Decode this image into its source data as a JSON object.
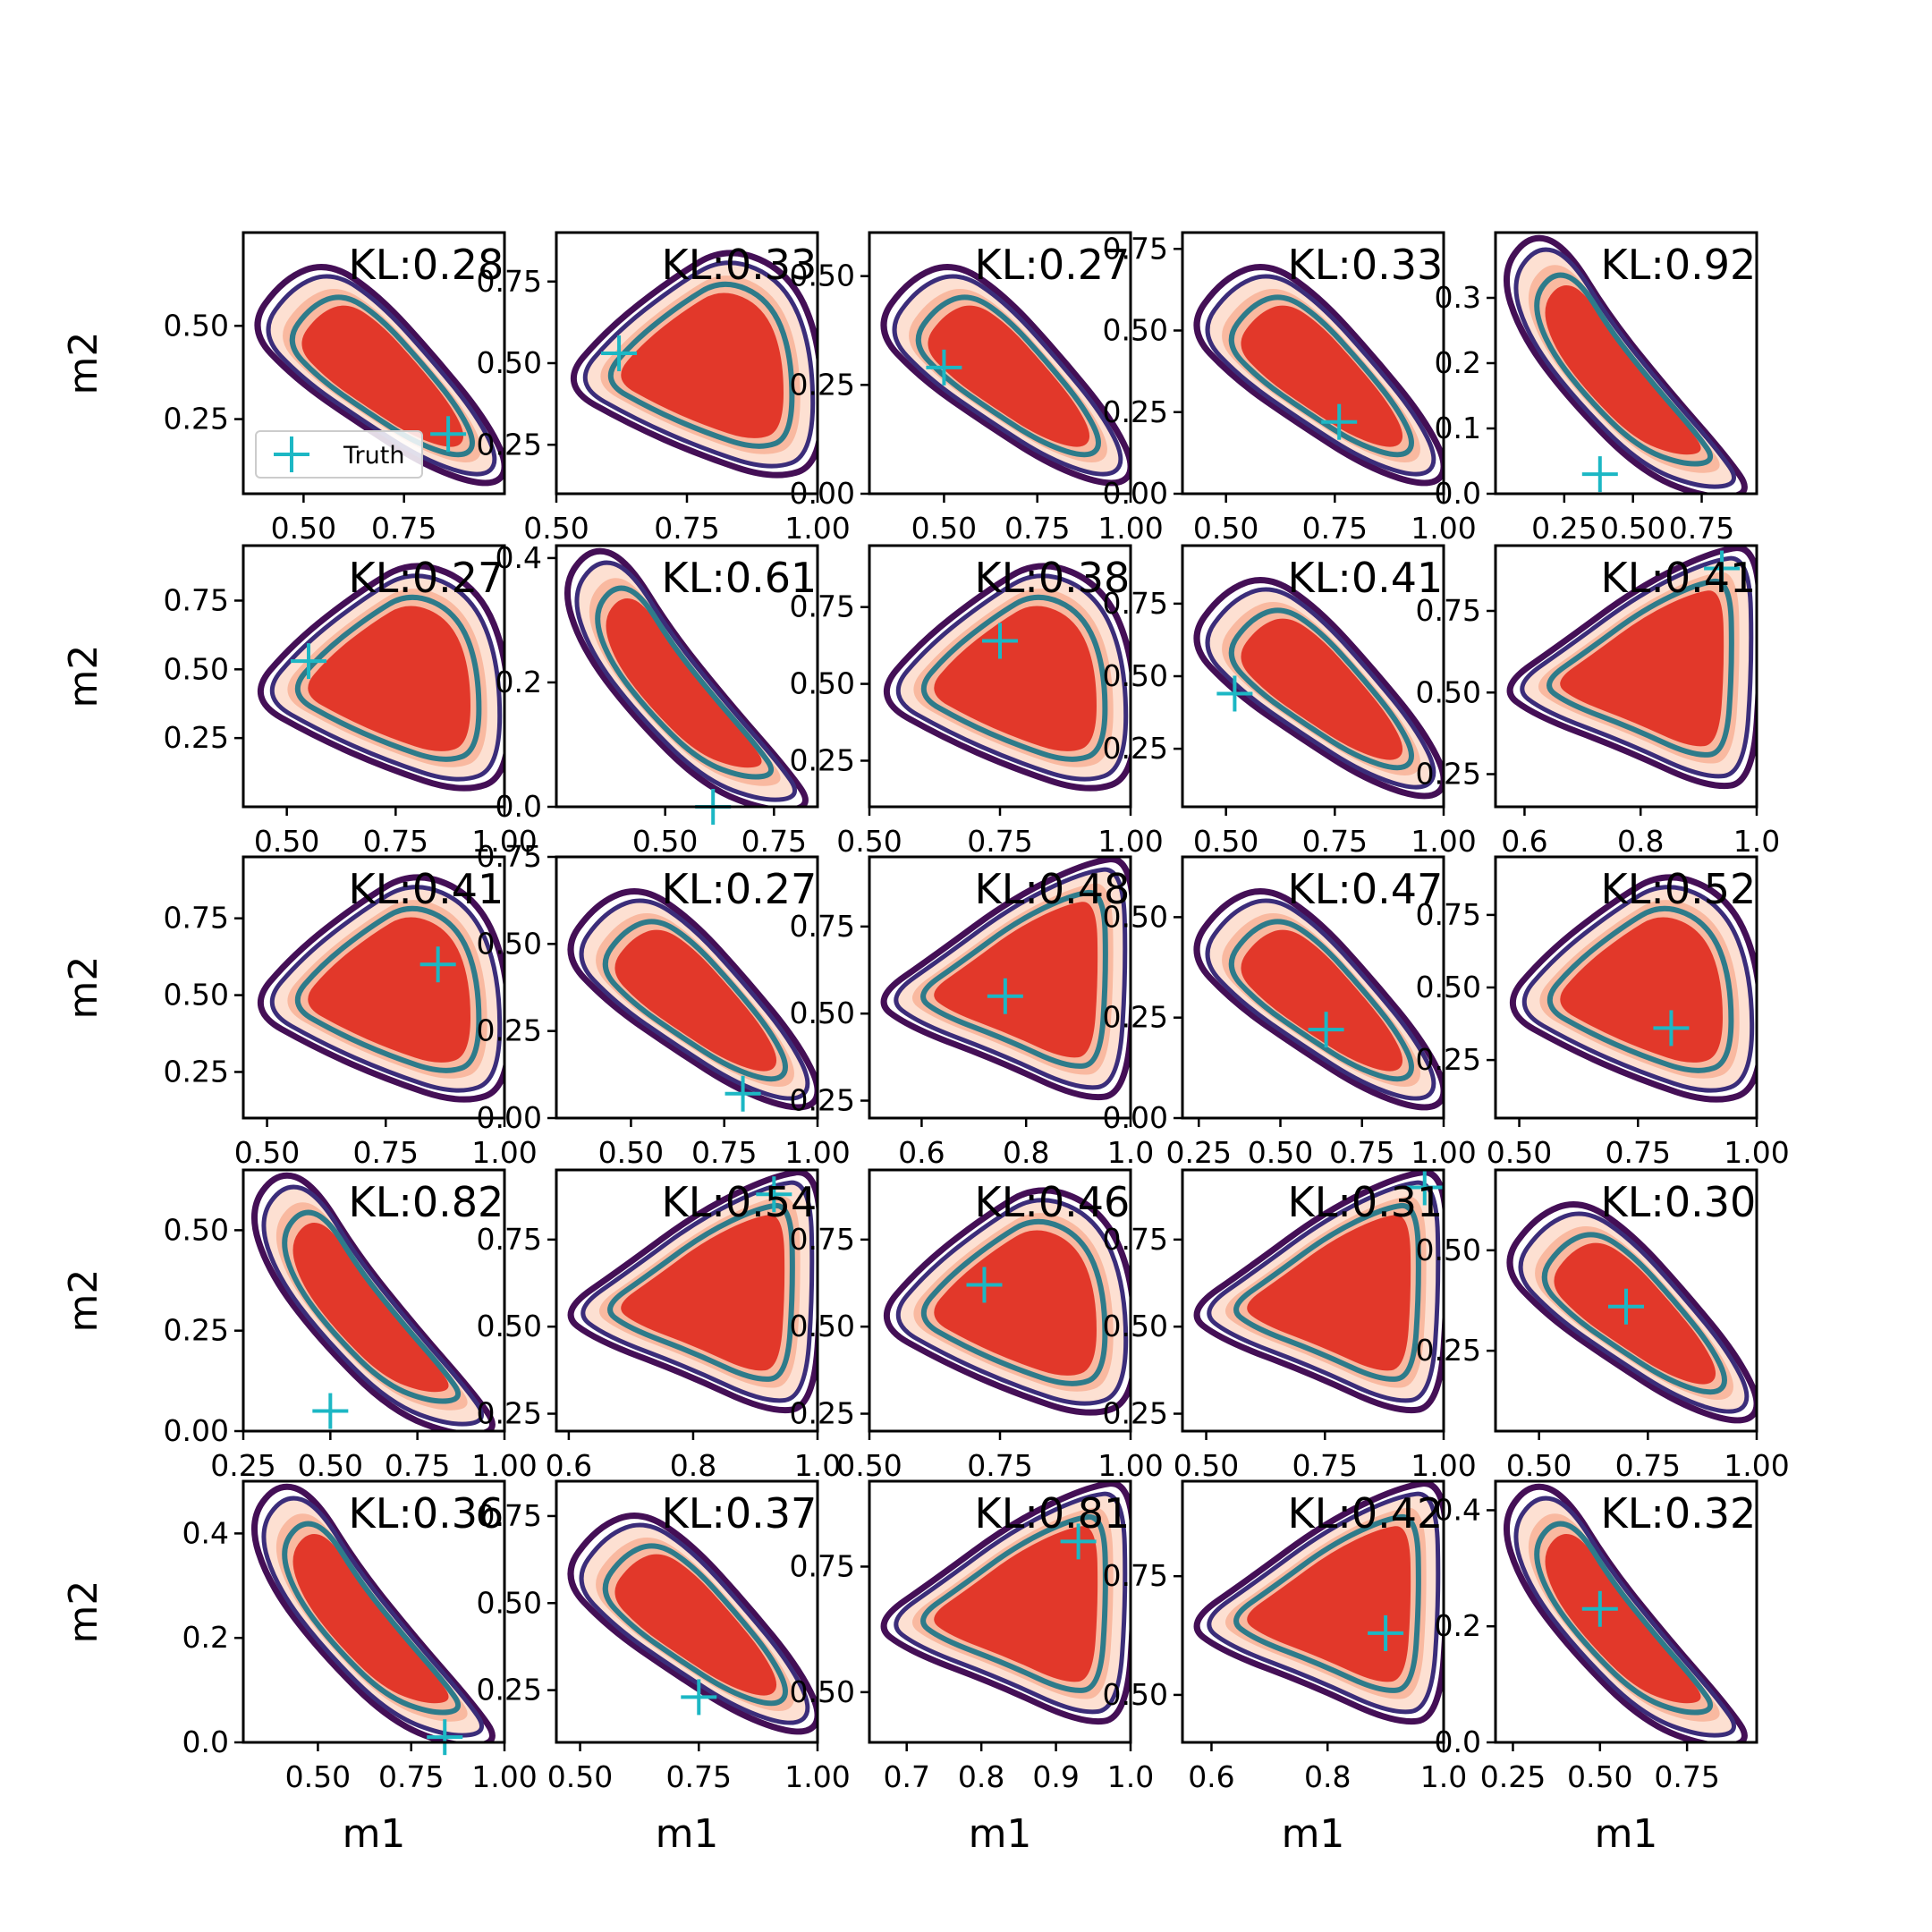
{
  "colors": {
    "fill_outer": "#fde0d2",
    "fill_mid": "#f9b9a0",
    "fill_inner": "#e2382a",
    "contour_outer": "#440f56",
    "contour_mid": "#3b2d7a",
    "contour_inner": "#2e7b8a",
    "truth_marker": "#1cb7c4"
  },
  "chart_data": {
    "type": "contour-grid",
    "rows": 5,
    "cols": 5,
    "xlabel": "m1",
    "ylabel": "m2",
    "legend": {
      "label": "Truth",
      "location": "lower-left of first panel"
    },
    "panels": [
      {
        "kl": "KL:0.28",
        "shape": "diag",
        "xlim": [
          0.35,
          1.0
        ],
        "ylim": [
          0.05,
          0.75
        ],
        "xticks": [
          {
            "v": 0.5,
            "t": "0.50"
          },
          {
            "v": 0.75,
            "t": "0.75"
          }
        ],
        "yticks": [
          {
            "v": 0.25,
            "t": "0.25"
          },
          {
            "v": 0.5,
            "t": "0.50"
          }
        ],
        "truth": [
          0.86,
          0.21
        ]
      },
      {
        "kl": "KL:0.33",
        "shape": "tri",
        "xlim": [
          0.5,
          1.0
        ],
        "ylim": [
          0.1,
          0.9
        ],
        "xticks": [
          {
            "v": 0.5,
            "t": "0.50"
          },
          {
            "v": 0.75,
            "t": "0.75"
          },
          {
            "v": 1.0,
            "t": "1.00"
          }
        ],
        "yticks": [
          {
            "v": 0.25,
            "t": "0.25"
          },
          {
            "v": 0.5,
            "t": "0.50"
          },
          {
            "v": 0.75,
            "t": "0.75"
          }
        ],
        "truth": [
          0.62,
          0.53
        ]
      },
      {
        "kl": "KL:0.27",
        "shape": "diag",
        "xlim": [
          0.3,
          1.0
        ],
        "ylim": [
          0.0,
          0.6
        ],
        "xticks": [
          {
            "v": 0.5,
            "t": "0.50"
          },
          {
            "v": 0.75,
            "t": "0.75"
          },
          {
            "v": 1.0,
            "t": "1.00"
          }
        ],
        "yticks": [
          {
            "v": 0.0,
            "t": "0.00"
          },
          {
            "v": 0.25,
            "t": "0.25"
          },
          {
            "v": 0.5,
            "t": "0.50"
          }
        ],
        "truth": [
          0.5,
          0.29
        ]
      },
      {
        "kl": "KL:0.33",
        "shape": "diag",
        "xlim": [
          0.4,
          1.0
        ],
        "ylim": [
          0.0,
          0.8
        ],
        "xticks": [
          {
            "v": 0.5,
            "t": "0.50"
          },
          {
            "v": 0.75,
            "t": "0.75"
          },
          {
            "v": 1.0,
            "t": "1.00"
          }
        ],
        "yticks": [
          {
            "v": 0.0,
            "t": "0.00"
          },
          {
            "v": 0.25,
            "t": "0.25"
          },
          {
            "v": 0.5,
            "t": "0.50"
          },
          {
            "v": 0.75,
            "t": "0.75"
          }
        ],
        "truth": [
          0.76,
          0.22
        ]
      },
      {
        "kl": "KL:0.92",
        "shape": "steep",
        "xlim": [
          0.0,
          0.95
        ],
        "ylim": [
          0.0,
          0.4
        ],
        "xticks": [
          {
            "v": 0.25,
            "t": "0.25"
          },
          {
            "v": 0.5,
            "t": "0.50"
          },
          {
            "v": 0.75,
            "t": "0.75"
          }
        ],
        "yticks": [
          {
            "v": 0.0,
            "t": "0.0"
          },
          {
            "v": 0.1,
            "t": "0.1"
          },
          {
            "v": 0.2,
            "t": "0.2"
          },
          {
            "v": 0.3,
            "t": "0.3"
          }
        ],
        "truth": [
          0.38,
          0.03
        ]
      },
      {
        "kl": "KL:0.27",
        "shape": "tri",
        "xlim": [
          0.4,
          1.0
        ],
        "ylim": [
          0.0,
          0.95
        ],
        "xticks": [
          {
            "v": 0.5,
            "t": "0.50"
          },
          {
            "v": 0.75,
            "t": "0.75"
          },
          {
            "v": 1.0,
            "t": "1.00"
          }
        ],
        "yticks": [
          {
            "v": 0.25,
            "t": "0.25"
          },
          {
            "v": 0.5,
            "t": "0.50"
          },
          {
            "v": 0.75,
            "t": "0.75"
          }
        ],
        "truth": [
          0.55,
          0.53
        ]
      },
      {
        "kl": "KL:0.61",
        "shape": "steep",
        "xlim": [
          0.25,
          0.85
        ],
        "ylim": [
          0.0,
          0.42
        ],
        "xticks": [
          {
            "v": 0.5,
            "t": "0.50"
          },
          {
            "v": 0.75,
            "t": "0.75"
          }
        ],
        "yticks": [
          {
            "v": 0.0,
            "t": "0.0"
          },
          {
            "v": 0.2,
            "t": "0.2"
          },
          {
            "v": 0.4,
            "t": "0.4"
          }
        ],
        "truth": [
          0.61,
          0.0
        ]
      },
      {
        "kl": "KL:0.38",
        "shape": "tri",
        "xlim": [
          0.5,
          1.0
        ],
        "ylim": [
          0.1,
          0.95
        ],
        "xticks": [
          {
            "v": 0.5,
            "t": "0.50"
          },
          {
            "v": 0.75,
            "t": "0.75"
          },
          {
            "v": 1.0,
            "t": "1.00"
          }
        ],
        "yticks": [
          {
            "v": 0.25,
            "t": "0.25"
          },
          {
            "v": 0.5,
            "t": "0.50"
          },
          {
            "v": 0.75,
            "t": "0.75"
          }
        ],
        "truth": [
          0.75,
          0.64
        ]
      },
      {
        "kl": "KL:0.41",
        "shape": "diag",
        "xlim": [
          0.4,
          1.0
        ],
        "ylim": [
          0.05,
          0.95
        ],
        "xticks": [
          {
            "v": 0.5,
            "t": "0.50"
          },
          {
            "v": 0.75,
            "t": "0.75"
          },
          {
            "v": 1.0,
            "t": "1.00"
          }
        ],
        "yticks": [
          {
            "v": 0.25,
            "t": "0.25"
          },
          {
            "v": 0.5,
            "t": "0.50"
          },
          {
            "v": 0.75,
            "t": "0.75"
          }
        ],
        "truth": [
          0.52,
          0.44
        ]
      },
      {
        "kl": "KL:0.41",
        "shape": "up",
        "xlim": [
          0.55,
          1.0
        ],
        "ylim": [
          0.15,
          0.95
        ],
        "xticks": [
          {
            "v": 0.6,
            "t": "0.6"
          },
          {
            "v": 0.8,
            "t": "0.8"
          },
          {
            "v": 1.0,
            "t": "1.0"
          }
        ],
        "yticks": [
          {
            "v": 0.25,
            "t": "0.25"
          },
          {
            "v": 0.5,
            "t": "0.50"
          },
          {
            "v": 0.75,
            "t": "0.75"
          }
        ],
        "truth": [
          0.94,
          0.88
        ]
      },
      {
        "kl": "KL:0.41",
        "shape": "tri",
        "xlim": [
          0.45,
          1.0
        ],
        "ylim": [
          0.1,
          0.95
        ],
        "xticks": [
          {
            "v": 0.5,
            "t": "0.50"
          },
          {
            "v": 0.75,
            "t": "0.75"
          },
          {
            "v": 1.0,
            "t": "1.00"
          }
        ],
        "yticks": [
          {
            "v": 0.25,
            "t": "0.25"
          },
          {
            "v": 0.5,
            "t": "0.50"
          },
          {
            "v": 0.75,
            "t": "0.75"
          }
        ],
        "truth": [
          0.86,
          0.6
        ]
      },
      {
        "kl": "KL:0.27",
        "shape": "diag",
        "xlim": [
          0.3,
          1.0
        ],
        "ylim": [
          0.0,
          0.75
        ],
        "xticks": [
          {
            "v": 0.5,
            "t": "0.50"
          },
          {
            "v": 0.75,
            "t": "0.75"
          },
          {
            "v": 1.0,
            "t": "1.00"
          }
        ],
        "yticks": [
          {
            "v": 0.0,
            "t": "0.00"
          },
          {
            "v": 0.25,
            "t": "0.25"
          },
          {
            "v": 0.5,
            "t": "0.50"
          },
          {
            "v": 0.75,
            "t": "0.75"
          }
        ],
        "truth": [
          0.8,
          0.07
        ]
      },
      {
        "kl": "KL:0.48",
        "shape": "up",
        "xlim": [
          0.5,
          1.0
        ],
        "ylim": [
          0.2,
          0.95
        ],
        "xticks": [
          {
            "v": 0.6,
            "t": "0.6"
          },
          {
            "v": 0.8,
            "t": "0.8"
          },
          {
            "v": 1.0,
            "t": "1.0"
          }
        ],
        "yticks": [
          {
            "v": 0.25,
            "t": "0.25"
          },
          {
            "v": 0.5,
            "t": "0.50"
          },
          {
            "v": 0.75,
            "t": "0.75"
          }
        ],
        "truth": [
          0.76,
          0.55
        ]
      },
      {
        "kl": "KL:0.47",
        "shape": "diag",
        "xlim": [
          0.2,
          1.0
        ],
        "ylim": [
          0.0,
          0.65
        ],
        "xticks": [
          {
            "v": 0.25,
            "t": "0.25"
          },
          {
            "v": 0.5,
            "t": "0.50"
          },
          {
            "v": 0.75,
            "t": "0.75"
          },
          {
            "v": 1.0,
            "t": "1.00"
          }
        ],
        "yticks": [
          {
            "v": 0.0,
            "t": "0.00"
          },
          {
            "v": 0.25,
            "t": "0.25"
          },
          {
            "v": 0.5,
            "t": "0.50"
          }
        ],
        "truth": [
          0.64,
          0.22
        ]
      },
      {
        "kl": "KL:0.52",
        "shape": "tri",
        "xlim": [
          0.45,
          1.0
        ],
        "ylim": [
          0.05,
          0.95
        ],
        "xticks": [
          {
            "v": 0.5,
            "t": "0.50"
          },
          {
            "v": 0.75,
            "t": "0.75"
          },
          {
            "v": 1.0,
            "t": "1.00"
          }
        ],
        "yticks": [
          {
            "v": 0.25,
            "t": "0.25"
          },
          {
            "v": 0.5,
            "t": "0.50"
          },
          {
            "v": 0.75,
            "t": "0.75"
          }
        ],
        "truth": [
          0.82,
          0.36
        ]
      },
      {
        "kl": "KL:0.82",
        "shape": "steep",
        "xlim": [
          0.25,
          1.0
        ],
        "ylim": [
          0.0,
          0.65
        ],
        "xticks": [
          {
            "v": 0.25,
            "t": "0.25"
          },
          {
            "v": 0.5,
            "t": "0.50"
          },
          {
            "v": 0.75,
            "t": "0.75"
          },
          {
            "v": 1.0,
            "t": "1.00"
          }
        ],
        "yticks": [
          {
            "v": 0.0,
            "t": "0.00"
          },
          {
            "v": 0.25,
            "t": "0.25"
          },
          {
            "v": 0.5,
            "t": "0.50"
          }
        ],
        "truth": [
          0.5,
          0.05
        ]
      },
      {
        "kl": "KL:0.54",
        "shape": "up",
        "xlim": [
          0.58,
          1.0
        ],
        "ylim": [
          0.2,
          0.95
        ],
        "xticks": [
          {
            "v": 0.6,
            "t": "0.6"
          },
          {
            "v": 0.8,
            "t": "0.8"
          },
          {
            "v": 1.0,
            "t": "1.0"
          }
        ],
        "yticks": [
          {
            "v": 0.25,
            "t": "0.25"
          },
          {
            "v": 0.5,
            "t": "0.50"
          },
          {
            "v": 0.75,
            "t": "0.75"
          }
        ],
        "truth": [
          0.93,
          0.88
        ]
      },
      {
        "kl": "KL:0.46",
        "shape": "tri",
        "xlim": [
          0.5,
          1.0
        ],
        "ylim": [
          0.2,
          0.95
        ],
        "xticks": [
          {
            "v": 0.5,
            "t": "0.50"
          },
          {
            "v": 0.75,
            "t": "0.75"
          },
          {
            "v": 1.0,
            "t": "1.00"
          }
        ],
        "yticks": [
          {
            "v": 0.25,
            "t": "0.25"
          },
          {
            "v": 0.5,
            "t": "0.50"
          },
          {
            "v": 0.75,
            "t": "0.75"
          }
        ],
        "truth": [
          0.72,
          0.62
        ]
      },
      {
        "kl": "KL:0.31",
        "shape": "up",
        "xlim": [
          0.45,
          1.0
        ],
        "ylim": [
          0.2,
          0.95
        ],
        "xticks": [
          {
            "v": 0.5,
            "t": "0.50"
          },
          {
            "v": 0.75,
            "t": "0.75"
          },
          {
            "v": 1.0,
            "t": "1.00"
          }
        ],
        "yticks": [
          {
            "v": 0.25,
            "t": "0.25"
          },
          {
            "v": 0.5,
            "t": "0.50"
          },
          {
            "v": 0.75,
            "t": "0.75"
          }
        ],
        "truth": [
          0.96,
          0.9
        ]
      },
      {
        "kl": "KL:0.30",
        "shape": "diag",
        "xlim": [
          0.4,
          1.0
        ],
        "ylim": [
          0.05,
          0.7
        ],
        "xticks": [
          {
            "v": 0.5,
            "t": "0.50"
          },
          {
            "v": 0.75,
            "t": "0.75"
          },
          {
            "v": 1.0,
            "t": "1.00"
          }
        ],
        "yticks": [
          {
            "v": 0.25,
            "t": "0.25"
          },
          {
            "v": 0.5,
            "t": "0.50"
          }
        ],
        "truth": [
          0.7,
          0.36
        ]
      },
      {
        "kl": "KL:0.36",
        "shape": "steep",
        "xlim": [
          0.3,
          1.0
        ],
        "ylim": [
          0.0,
          0.5
        ],
        "xticks": [
          {
            "v": 0.5,
            "t": "0.50"
          },
          {
            "v": 0.75,
            "t": "0.75"
          },
          {
            "v": 1.0,
            "t": "1.00"
          }
        ],
        "yticks": [
          {
            "v": 0.0,
            "t": "0.0"
          },
          {
            "v": 0.2,
            "t": "0.2"
          },
          {
            "v": 0.4,
            "t": "0.4"
          }
        ],
        "truth": [
          0.84,
          0.01
        ]
      },
      {
        "kl": "KL:0.37",
        "shape": "diag",
        "xlim": [
          0.45,
          1.0
        ],
        "ylim": [
          0.1,
          0.85
        ],
        "xticks": [
          {
            "v": 0.5,
            "t": "0.50"
          },
          {
            "v": 0.75,
            "t": "0.75"
          },
          {
            "v": 1.0,
            "t": "1.00"
          }
        ],
        "yticks": [
          {
            "v": 0.25,
            "t": "0.25"
          },
          {
            "v": 0.5,
            "t": "0.50"
          },
          {
            "v": 0.75,
            "t": "0.75"
          }
        ],
        "truth": [
          0.75,
          0.23
        ]
      },
      {
        "kl": "KL:0.81",
        "shape": "up",
        "xlim": [
          0.65,
          1.0
        ],
        "ylim": [
          0.4,
          0.92
        ],
        "xticks": [
          {
            "v": 0.7,
            "t": "0.7"
          },
          {
            "v": 0.8,
            "t": "0.8"
          },
          {
            "v": 0.9,
            "t": "0.9"
          },
          {
            "v": 1.0,
            "t": "1.0"
          }
        ],
        "yticks": [
          {
            "v": 0.5,
            "t": "0.50"
          },
          {
            "v": 0.75,
            "t": "0.75"
          }
        ],
        "truth": [
          0.93,
          0.8
        ]
      },
      {
        "kl": "KL:0.42",
        "shape": "up",
        "xlim": [
          0.55,
          1.0
        ],
        "ylim": [
          0.4,
          0.95
        ],
        "xticks": [
          {
            "v": 0.6,
            "t": "0.6"
          },
          {
            "v": 0.8,
            "t": "0.8"
          },
          {
            "v": 1.0,
            "t": "1.0"
          }
        ],
        "yticks": [
          {
            "v": 0.5,
            "t": "0.50"
          },
          {
            "v": 0.75,
            "t": "0.75"
          }
        ],
        "truth": [
          0.9,
          0.63
        ]
      },
      {
        "kl": "KL:0.32",
        "shape": "steep",
        "xlim": [
          0.2,
          0.95
        ],
        "ylim": [
          0.0,
          0.45
        ],
        "xticks": [
          {
            "v": 0.25,
            "t": "0.25"
          },
          {
            "v": 0.5,
            "t": "0.50"
          },
          {
            "v": 0.75,
            "t": "0.75"
          }
        ],
        "yticks": [
          {
            "v": 0.0,
            "t": "0.0"
          },
          {
            "v": 0.2,
            "t": "0.2"
          },
          {
            "v": 0.4,
            "t": "0.4"
          }
        ],
        "truth": [
          0.5,
          0.23
        ]
      }
    ]
  }
}
